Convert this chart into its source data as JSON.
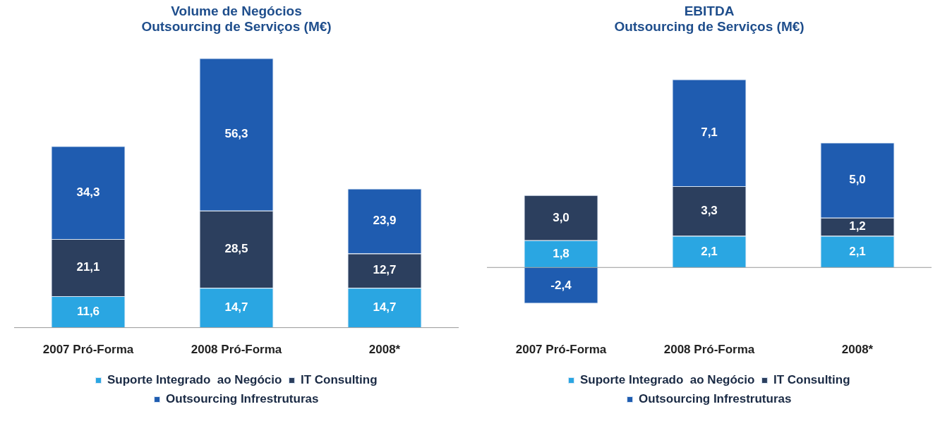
{
  "chart_data": [
    {
      "type": "bar",
      "stacked": true,
      "title": "Volume de Negócios\nOutsourcing de Serviços (M€)",
      "categories": [
        "2007 Pró-Forma",
        "2008 Pró-Forma",
        "2008*"
      ],
      "legend": "bottom",
      "grid": false,
      "tick_labels": "x",
      "series": [
        {
          "name": "Suporte Integrado  ao Negócio",
          "color": "#2aa6e2",
          "values": [
            11.6,
            14.7,
            14.7
          ],
          "value_labels": [
            "11,6",
            "14,7",
            "14,7"
          ]
        },
        {
          "name": "IT Consulting",
          "color": "#2c3f5e",
          "values": [
            21.1,
            28.5,
            12.7
          ],
          "value_labels": [
            "21,1",
            "28,5",
            "12,7"
          ]
        },
        {
          "name": "Outsourcing Infrestruturas",
          "color": "#1f5cb0",
          "values": [
            34.3,
            56.3,
            23.9
          ],
          "value_labels": [
            "34,3",
            "56,3",
            "23,9"
          ]
        }
      ]
    },
    {
      "type": "bar",
      "stacked": true,
      "title": "EBITDA\nOutsourcing de Serviços (M€)",
      "categories": [
        "2007 Pró-Forma",
        "2008 Pró-Forma",
        "2008*"
      ],
      "legend": "bottom",
      "grid": false,
      "tick_labels": "x",
      "series": [
        {
          "name": "Suporte Integrado  ao Negócio",
          "color": "#2aa6e2",
          "values": [
            1.8,
            2.1,
            2.1
          ],
          "value_labels": [
            "1,8",
            "2,1",
            "2,1"
          ]
        },
        {
          "name": "IT Consulting",
          "color": "#2c3f5e",
          "values": [
            3.0,
            3.3,
            1.2
          ],
          "value_labels": [
            "3,0",
            "3,3",
            "1,2"
          ]
        },
        {
          "name": "Outsourcing Infrestruturas",
          "color": "#1f5cb0",
          "values": [
            -2.4,
            7.1,
            5.0
          ],
          "value_labels": [
            "-2,4",
            "7,1",
            "5,0"
          ]
        }
      ]
    }
  ]
}
